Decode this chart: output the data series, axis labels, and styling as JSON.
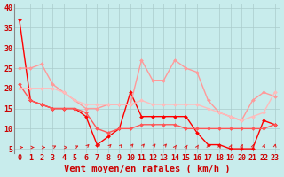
{
  "x": [
    0,
    1,
    2,
    3,
    4,
    5,
    6,
    7,
    8,
    9,
    10,
    11,
    12,
    13,
    14,
    15,
    16,
    17,
    18,
    19,
    20,
    21,
    22,
    23
  ],
  "series": [
    {
      "color": "#ff0000",
      "linewidth": 1.0,
      "marker": "D",
      "markersize": 2.0,
      "y": [
        37,
        17,
        16,
        15,
        15,
        15,
        13,
        6,
        8,
        10,
        19,
        13,
        13,
        13,
        13,
        13,
        9,
        6,
        6,
        5,
        5,
        5,
        12,
        11
      ]
    },
    {
      "color": "#ff5555",
      "linewidth": 1.0,
      "marker": "D",
      "markersize": 2.0,
      "y": [
        21,
        17,
        16,
        15,
        15,
        15,
        14,
        10,
        9,
        10,
        10,
        11,
        11,
        11,
        11,
        10,
        10,
        10,
        10,
        10,
        10,
        10,
        10,
        11
      ]
    },
    {
      "color": "#ff9999",
      "linewidth": 1.0,
      "marker": "D",
      "markersize": 2.0,
      "y": [
        25,
        25,
        26,
        21,
        19,
        17,
        15,
        15,
        16,
        16,
        16,
        27,
        22,
        22,
        27,
        25,
        24,
        17,
        14,
        13,
        12,
        17,
        19,
        18
      ]
    },
    {
      "color": "#ffbbbb",
      "linewidth": 1.0,
      "marker": "D",
      "markersize": 2.0,
      "y": [
        20,
        20,
        20,
        20,
        19,
        17,
        16,
        16,
        16,
        16,
        16,
        17,
        16,
        16,
        16,
        16,
        16,
        15,
        14,
        13,
        12,
        13,
        14,
        19
      ]
    }
  ],
  "xlabel": "Vent moyen/en rafales ( km/h )",
  "xlim": [
    -0.5,
    23.5
  ],
  "ylim": [
    4,
    41
  ],
  "yticks": [
    5,
    10,
    15,
    20,
    25,
    30,
    35,
    40
  ],
  "xticks": [
    0,
    1,
    2,
    3,
    4,
    5,
    6,
    7,
    8,
    9,
    10,
    11,
    12,
    13,
    14,
    15,
    16,
    17,
    18,
    19,
    20,
    21,
    22,
    23
  ],
  "bg_color": "#c8ecec",
  "grid_color": "#aacccc",
  "arrow_color": "#dd2222",
  "xlabel_color": "#cc0000",
  "tick_color": "#cc0000",
  "xlabel_fontsize": 7.5,
  "tick_fontsize": 6.0
}
